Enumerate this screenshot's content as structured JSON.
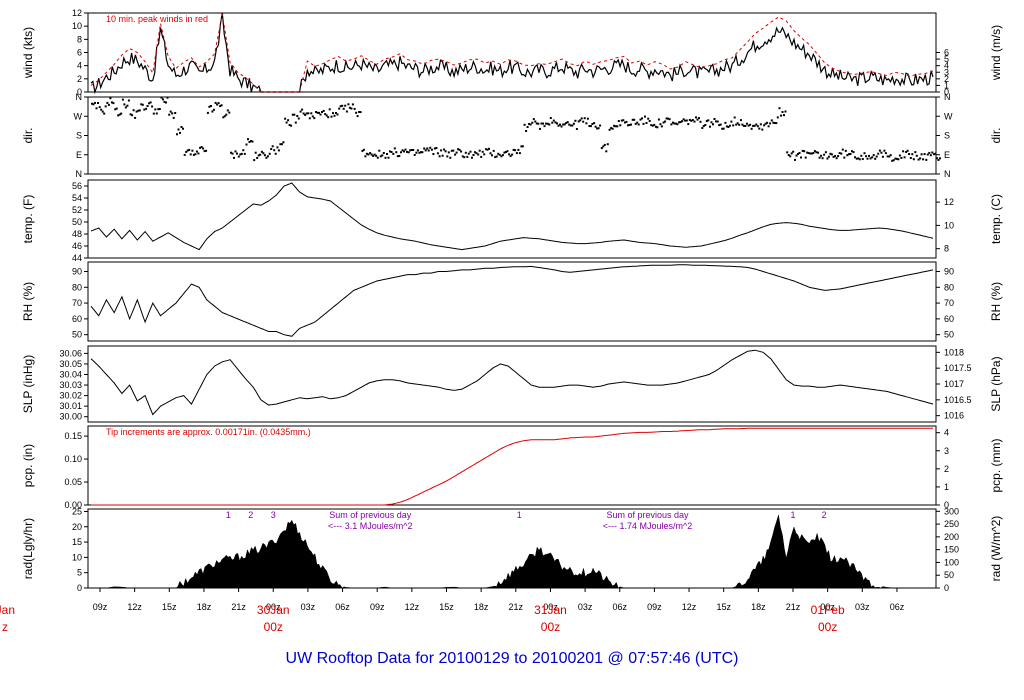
{
  "title": "UW Rooftop Data for 20100129  to  20100201 @ 07:57:46  (UTC)",
  "colors": {
    "line": "#000000",
    "red": "#dd0000",
    "purple": "#8800aa",
    "blue": "#0000cc"
  },
  "x_axis": {
    "hour_ticks": [
      "09z",
      "12z",
      "15z",
      "18z",
      "21z",
      "00z",
      "03z",
      "06z",
      "09z",
      "12z",
      "15z",
      "18z",
      "21z",
      "00z",
      "03z",
      "06z",
      "09z",
      "12z",
      "15z",
      "18z",
      "21z",
      "00z",
      "03z",
      "06z"
    ],
    "day_labels": [
      {
        "date": "30Jan",
        "time": "00z",
        "tick_index": 5
      },
      {
        "date": "31Jan",
        "time": "00z",
        "tick_index": 13
      },
      {
        "date": "01Feb",
        "time": "00z",
        "tick_index": 21
      }
    ],
    "left_cut_label": {
      "date": "Jan",
      "time": "z"
    }
  },
  "chart_data": [
    {
      "type": "line",
      "panel": "wind",
      "ylabel_left": "wind (kts)",
      "ylabel_right": "wind (m/s)",
      "yticks_left": [
        "0",
        "2",
        "4",
        "6",
        "8",
        "10",
        "12"
      ],
      "yticks_right": [
        "0",
        "1",
        "2",
        "3",
        "4",
        "5",
        "6"
      ],
      "ylim": [
        0,
        12
      ],
      "annotation": "10 min. peak winds in red",
      "series": [
        {
          "name": "wind speed",
          "values": [
            0.5,
            1.2,
            2.3,
            3.1,
            4.5,
            5.2,
            4.8,
            3.5,
            2.0,
            9.5,
            4.2,
            2.6,
            3.4,
            4.0,
            2.8,
            3.5,
            4.6,
            11.0,
            3.4,
            2.1,
            1.4,
            0.7,
            0,
            0,
            0,
            0,
            0,
            0,
            3.6,
            2.9,
            3.3,
            3.8,
            4.2,
            3.6,
            3.9,
            4.3,
            3.7,
            3.2,
            3.9,
            4.1,
            4.5,
            3.8,
            3.6,
            3.2,
            3.7,
            3.9,
            3.5,
            3.1,
            3.4,
            3.8,
            3.9,
            3.4,
            3.6,
            3.2,
            3.8,
            3.6,
            3.1,
            3.0,
            3.3,
            3.2,
            3.5,
            3.9,
            3.3,
            3.0,
            3.6,
            3.2,
            3.5,
            3.7,
            4.0,
            4.2,
            3.4,
            3.6,
            3.1,
            3.5,
            3.2,
            2.6,
            2.9,
            3.5,
            3.1,
            2.8,
            3.0,
            3.3,
            3.8,
            4.0,
            5.0,
            6.1,
            7.2,
            7.9,
            8.6,
            9.3,
            8.7,
            7.5,
            6.6,
            5.8,
            4.6,
            3.4,
            2.7,
            2.3,
            2.0,
            1.9,
            2.1,
            2.3,
            2.0,
            1.8,
            2.2,
            2.0,
            1.7,
            1.9,
            2.0,
            2.3
          ]
        },
        {
          "name": "10 min. peak winds",
          "values": [
            1.0,
            1.8,
            3.0,
            4.2,
            5.6,
            6.6,
            6.0,
            4.6,
            2.9,
            10.4,
            5.4,
            3.6,
            4.5,
            5.2,
            3.8,
            4.6,
            5.8,
            11.8,
            4.5,
            3.0,
            2.2,
            1.2,
            0,
            0,
            0,
            0,
            0,
            0,
            4.7,
            3.9,
            4.3,
            4.9,
            5.4,
            4.7,
            5.0,
            5.5,
            4.8,
            4.2,
            5.0,
            5.3,
            5.8,
            4.9,
            4.7,
            4.2,
            4.8,
            5.0,
            4.6,
            4.1,
            4.4,
            4.9,
            5.0,
            4.4,
            4.7,
            4.2,
            4.9,
            4.7,
            4.1,
            4.0,
            4.3,
            4.2,
            4.6,
            5.0,
            4.3,
            4.0,
            4.7,
            4.2,
            4.6,
            4.8,
            5.2,
            5.4,
            4.4,
            4.7,
            4.1,
            4.6,
            4.2,
            3.5,
            3.8,
            4.6,
            4.1,
            3.7,
            4.0,
            4.3,
            4.9,
            5.2,
            6.4,
            7.6,
            8.9,
            9.7,
            10.6,
            11.4,
            10.8,
            9.3,
            8.2,
            7.2,
            5.8,
            4.4,
            3.6,
            3.1,
            2.8,
            2.7,
            2.9,
            3.1,
            2.8,
            2.5,
            3.0,
            2.8,
            2.4,
            2.7,
            2.8,
            3.2
          ]
        }
      ]
    },
    {
      "type": "scatter",
      "panel": "dir",
      "ylabel_left": "dir.",
      "ylabel_right": "dir.",
      "yticks_left": [
        "N",
        "E",
        "S",
        "W",
        "N"
      ],
      "yticks_right": [
        "N",
        "E",
        "S",
        "W",
        "N"
      ],
      "ylim": [
        0,
        360
      ],
      "values": [
        315,
        300,
        340,
        290,
        330,
        280,
        310,
        320,
        300,
        340,
        280,
        200,
        100,
        90,
        110,
        300,
        320,
        280,
        90,
        100,
        150,
        80,
        95,
        110,
        130,
        240,
        260,
        290,
        270,
        280,
        285,
        270,
        300,
        310,
        290,
        100,
        95,
        90,
        95,
        100,
        105,
        95,
        100,
        110,
        105,
        100,
        95,
        100,
        95,
        90,
        95,
        100,
        95,
        95,
        100,
        110,
        220,
        240,
        230,
        250,
        240,
        235,
        230,
        245,
        240,
        230,
        120,
        220,
        240,
        235,
        245,
        250,
        240,
        235,
        245,
        230,
        240,
        250,
        245,
        235,
        240,
        230,
        235,
        245,
        240,
        230,
        225,
        235,
        250,
        290,
        100,
        85,
        90,
        95,
        80,
        90,
        85,
        95,
        90,
        85,
        90,
        85,
        90,
        80,
        85,
        90,
        85,
        80,
        85,
        80
      ]
    },
    {
      "type": "line",
      "panel": "temp",
      "ylabel_left": "temp. (F)",
      "ylabel_right": "temp. (C)",
      "yticks_left": [
        "44",
        "46",
        "48",
        "50",
        "52",
        "54",
        "56"
      ],
      "yticks_right": [
        "8",
        "10",
        "12"
      ],
      "ylim": [
        44,
        57
      ],
      "values": [
        48.5,
        49.0,
        47.5,
        48.8,
        47.2,
        48.6,
        47.0,
        48.4,
        46.8,
        47.5,
        48.2,
        47.4,
        46.6,
        46.0,
        45.4,
        47.2,
        48.4,
        49.0,
        50.0,
        51.0,
        52.0,
        53.0,
        52.8,
        53.5,
        54.5,
        56.0,
        56.5,
        55.0,
        54.2,
        54.0,
        53.8,
        53.5,
        52.5,
        51.5,
        50.5,
        49.5,
        48.8,
        48.2,
        47.8,
        47.5,
        47.2,
        47.0,
        46.8,
        46.5,
        46.2,
        46.0,
        45.8,
        45.6,
        45.4,
        45.6,
        45.8,
        46.0,
        46.4,
        46.8,
        47.0,
        47.2,
        47.4,
        47.3,
        47.2,
        47.0,
        46.8,
        46.6,
        46.5,
        46.4,
        46.4,
        46.5,
        46.6,
        46.8,
        46.9,
        47.0,
        46.8,
        46.6,
        46.5,
        46.4,
        46.2,
        46.0,
        45.9,
        45.8,
        45.9,
        46.0,
        46.3,
        46.6,
        46.9,
        47.3,
        47.8,
        48.2,
        48.7,
        49.2,
        49.6,
        49.8,
        49.9,
        49.8,
        49.6,
        49.3,
        49.1,
        48.9,
        48.7,
        48.6,
        48.6,
        48.7,
        48.8,
        48.9,
        49.0,
        48.9,
        48.7,
        48.5,
        48.2,
        47.9,
        47.6,
        47.3
      ]
    },
    {
      "type": "line",
      "panel": "rh",
      "ylabel_left": "RH (%)",
      "ylabel_right": "RH (%)",
      "yticks_left": [
        "50",
        "60",
        "70",
        "80",
        "90"
      ],
      "yticks_right": [
        "50",
        "60",
        "70",
        "80",
        "90"
      ],
      "ylim": [
        46,
        96
      ],
      "values": [
        68,
        62,
        72,
        64,
        74,
        60,
        72,
        58,
        70,
        62,
        66,
        70,
        76,
        82,
        80,
        72,
        68,
        64,
        62,
        60,
        58,
        56,
        54,
        52,
        52,
        50,
        49,
        54,
        56,
        58,
        62,
        66,
        70,
        74,
        78,
        80,
        82,
        84,
        85,
        86,
        87,
        88,
        88,
        89,
        89,
        90,
        90,
        90.5,
        91,
        91,
        91.5,
        92,
        92,
        92.5,
        92.8,
        93,
        93,
        93.2,
        92.5,
        91.8,
        91,
        90,
        89.5,
        90,
        90.5,
        91,
        91.5,
        92,
        92.5,
        93,
        93.2,
        93.5,
        93.8,
        94,
        94,
        94,
        94.2,
        94.2,
        94,
        94,
        93.8,
        93.6,
        93.4,
        93.2,
        93,
        92.5,
        91.5,
        90,
        88.5,
        87,
        85.5,
        84,
        82,
        80,
        79,
        78,
        78.5,
        79,
        80,
        81,
        82,
        83,
        84,
        85,
        86,
        87,
        88,
        89,
        90,
        91
      ]
    },
    {
      "type": "line",
      "panel": "slp",
      "ylabel_left": "SLP (inHg)",
      "ylabel_right": "SLP (hPa)",
      "yticks_left": [
        "30.00",
        "30.01",
        "30.02",
        "30.03",
        "30.04",
        "30.05",
        "30.06"
      ],
      "yticks_right": [
        "1016",
        "1016.5",
        "1017",
        "1017.5",
        "1018"
      ],
      "ylim": [
        29.995,
        30.067
      ],
      "values": [
        30.055,
        30.048,
        30.04,
        30.032,
        30.022,
        30.03,
        30.015,
        30.02,
        30.002,
        30.01,
        30.014,
        30.018,
        30.02,
        30.012,
        30.026,
        30.04,
        30.048,
        30.052,
        30.054,
        30.045,
        30.036,
        30.028,
        30.016,
        30.011,
        30.012,
        30.014,
        30.016,
        30.018,
        30.017,
        30.018,
        30.019,
        30.017,
        30.018,
        30.02,
        30.024,
        30.028,
        30.032,
        30.034,
        30.035,
        30.035,
        30.034,
        30.032,
        30.031,
        30.03,
        30.029,
        30.028,
        30.026,
        30.025,
        30.026,
        30.03,
        30.034,
        30.04,
        30.046,
        30.05,
        30.048,
        30.042,
        30.036,
        30.03,
        30.028,
        30.028,
        30.028,
        30.029,
        30.03,
        30.03,
        30.029,
        30.028,
        30.029,
        30.031,
        30.032,
        30.033,
        30.032,
        30.031,
        30.03,
        30.03,
        30.03,
        30.031,
        30.032,
        30.034,
        30.036,
        30.038,
        30.04,
        30.044,
        30.049,
        30.054,
        30.058,
        30.062,
        30.063,
        30.061,
        30.055,
        30.045,
        30.035,
        30.03,
        30.029,
        30.029,
        30.028,
        30.028,
        30.029,
        30.03,
        30.029,
        30.028,
        30.027,
        30.026,
        30.025,
        30.024,
        30.022,
        30.02,
        30.018,
        30.016,
        30.014,
        30.012
      ]
    },
    {
      "type": "line",
      "panel": "pcp",
      "ylabel_left": "pcp. (in)",
      "ylabel_right": "pcp. (mm)",
      "yticks_left": [
        "0.00",
        "0.05",
        "0.10",
        "0.15"
      ],
      "yticks_right": [
        "0",
        "1",
        "2",
        "3",
        "4"
      ],
      "ylim": [
        0,
        0.172
      ],
      "annotation": "Tip increments are approx. 0.00171in. (0.0435mm.)",
      "values": [
        0,
        0,
        0,
        0,
        0,
        0,
        0,
        0,
        0,
        0,
        0,
        0,
        0,
        0,
        0,
        0,
        0,
        0,
        0,
        0,
        0,
        0,
        0,
        0,
        0,
        0,
        0,
        0,
        0,
        0,
        0,
        0,
        0,
        0,
        0,
        0,
        0,
        0,
        0,
        0.002,
        0.006,
        0.012,
        0.02,
        0.028,
        0.036,
        0.044,
        0.052,
        0.062,
        0.072,
        0.082,
        0.092,
        0.102,
        0.112,
        0.122,
        0.13,
        0.136,
        0.14,
        0.142,
        0.142,
        0.142,
        0.142,
        0.144,
        0.146,
        0.147,
        0.148,
        0.148,
        0.15,
        0.152,
        0.154,
        0.156,
        0.157,
        0.158,
        0.158,
        0.159,
        0.16,
        0.16,
        0.161,
        0.162,
        0.163,
        0.164,
        0.164,
        0.165,
        0.166,
        0.166,
        0.166,
        0.167,
        0.167,
        0.167,
        0.167,
        0.167,
        0.167,
        0.167,
        0.167,
        0.167,
        0.167,
        0.167,
        0.167,
        0.167,
        0.167,
        0.167,
        0.167,
        0.167,
        0.167,
        0.167,
        0.167,
        0.167,
        0.167,
        0.167,
        0.167,
        0.167
      ]
    },
    {
      "type": "area",
      "panel": "rad",
      "ylabel_left": "rad(Lgly/hr)",
      "ylabel_right": "rad (W/m^2)",
      "yticks_left": [
        "0",
        "5",
        "10",
        "15",
        "20",
        "25"
      ],
      "yticks_right": [
        "0",
        "50",
        "100",
        "150",
        "200",
        "250",
        "300"
      ],
      "ylim": [
        0,
        25.8
      ],
      "annotations": [
        {
          "text": "1",
          "tick_pos": 3.7
        },
        {
          "text": "2",
          "tick_pos": 4.35
        },
        {
          "text": "3",
          "tick_pos": 5.0
        },
        {
          "text": "Sum of previous day",
          "tick_pos": 7.8
        },
        {
          "text": "<--- 3.1 MJoules/m^2",
          "tick_pos": 7.8,
          "line": 2
        },
        {
          "text": "1",
          "tick_pos": 12.1
        },
        {
          "text": "Sum of previous day",
          "tick_pos": 15.8
        },
        {
          "text": "<--- 1.74 MJoules/m^2",
          "tick_pos": 15.8,
          "line": 2
        },
        {
          "text": "1",
          "tick_pos": 20.0
        },
        {
          "text": "2",
          "tick_pos": 20.9
        }
      ],
      "values": [
        0,
        0,
        0,
        0.4,
        0.3,
        0,
        0,
        0,
        0,
        0,
        0,
        0,
        2,
        3.5,
        5,
        6.5,
        8,
        9,
        9.5,
        10,
        11,
        12,
        13,
        14,
        16,
        19,
        22,
        18,
        14,
        10,
        6,
        3,
        1,
        0.2,
        0,
        0,
        0,
        0,
        0.3,
        0,
        0,
        0,
        0,
        0,
        0,
        0,
        0.2,
        0.3,
        0,
        0,
        0,
        0,
        0.5,
        2,
        4,
        6,
        8,
        10,
        13,
        11,
        9,
        7,
        6,
        5,
        5,
        6,
        4,
        2,
        0.8,
        0,
        0,
        0,
        0,
        0,
        0,
        0,
        0,
        0,
        0,
        0,
        0,
        0,
        0,
        0,
        1,
        3,
        6,
        9,
        14,
        24,
        10,
        20,
        16,
        14,
        17,
        13,
        9,
        10,
        8,
        6,
        3,
        1.5,
        0.8,
        0.2,
        0,
        0,
        0,
        0,
        0,
        0
      ]
    }
  ]
}
